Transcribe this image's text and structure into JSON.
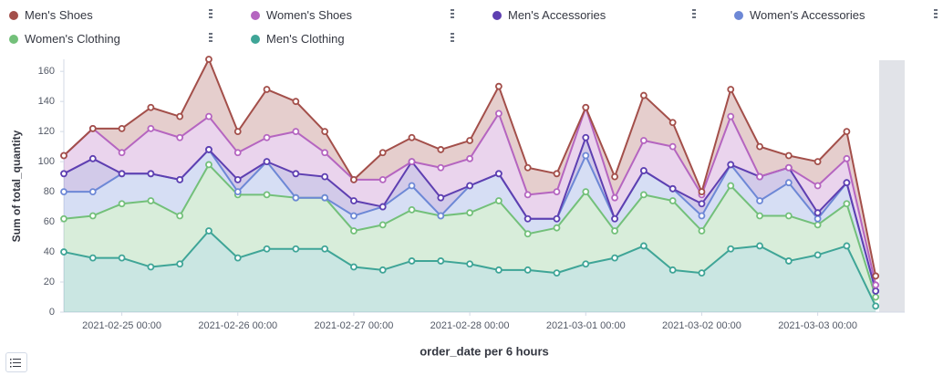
{
  "chart_data": {
    "type": "area",
    "stacked": true,
    "xlabel": "order_date per 6 hours",
    "ylabel": "Sum of total_quantity",
    "x": [
      "2021-02-24 12:00",
      "2021-02-24 18:00",
      "2021-02-25 00:00",
      "2021-02-25 06:00",
      "2021-02-25 12:00",
      "2021-02-25 18:00",
      "2021-02-26 00:00",
      "2021-02-26 06:00",
      "2021-02-26 12:00",
      "2021-02-26 18:00",
      "2021-02-27 00:00",
      "2021-02-27 06:00",
      "2021-02-27 12:00",
      "2021-02-27 18:00",
      "2021-02-28 00:00",
      "2021-02-28 06:00",
      "2021-02-28 12:00",
      "2021-02-28 18:00",
      "2021-03-01 00:00",
      "2021-03-01 06:00",
      "2021-03-01 12:00",
      "2021-03-01 18:00",
      "2021-03-02 00:00",
      "2021-03-02 06:00",
      "2021-03-02 12:00",
      "2021-03-02 18:00",
      "2021-03-03 00:00",
      "2021-03-03 06:00",
      "2021-03-03 12:00"
    ],
    "xlim": [
      "2021-02-24 12:00",
      "2021-03-03 18:00"
    ],
    "xticks": [
      "2021-02-25 00:00",
      "2021-02-26 00:00",
      "2021-02-27 00:00",
      "2021-02-28 00:00",
      "2021-03-01 00:00",
      "2021-03-02 00:00",
      "2021-03-03 00:00"
    ],
    "ylim": [
      0,
      168
    ],
    "yticks": [
      0,
      20,
      40,
      60,
      80,
      100,
      120,
      140,
      160
    ],
    "series": [
      {
        "name": "Men's Clothing",
        "color": "#3fa597",
        "values": [
          40,
          36,
          36,
          30,
          32,
          54,
          36,
          42,
          42,
          42,
          30,
          28,
          34,
          34,
          32,
          28,
          28,
          26,
          32,
          36,
          44,
          28,
          26,
          42,
          44,
          34,
          38,
          44,
          4
        ]
      },
      {
        "name": "Women's Clothing",
        "color": "#73c07a",
        "values": [
          22,
          28,
          36,
          44,
          32,
          44,
          42,
          36,
          34,
          34,
          24,
          30,
          34,
          30,
          34,
          46,
          24,
          30,
          48,
          18,
          34,
          46,
          28,
          42,
          20,
          30,
          20,
          28,
          6
        ]
      },
      {
        "name": "Women's Accessories",
        "color": "#6d88d6",
        "values": [
          18,
          16,
          20,
          18,
          24,
          10,
          2,
          22,
          0,
          0,
          10,
          12,
          16,
          0,
          18,
          18,
          10,
          6,
          24,
          8,
          16,
          8,
          10,
          14,
          10,
          22,
          4,
          14,
          4
        ]
      },
      {
        "name": "Men's Accessories",
        "color": "#5e3fb1",
        "values": [
          12,
          22,
          0,
          0,
          0,
          0,
          8,
          0,
          16,
          14,
          10,
          0,
          16,
          12,
          0,
          0,
          0,
          0,
          12,
          0,
          0,
          0,
          8,
          0,
          16,
          10,
          4,
          0,
          0
        ]
      },
      {
        "name": "Women's Shoes",
        "color": "#b565c0",
        "values": [
          12,
          20,
          14,
          30,
          28,
          22,
          18,
          16,
          28,
          16,
          14,
          18,
          0,
          20,
          18,
          40,
          16,
          18,
          20,
          14,
          20,
          28,
          6,
          32,
          0,
          0,
          18,
          16,
          4
        ]
      },
      {
        "name": "Men's Shoes",
        "color": "#a34f4a",
        "values": [
          0,
          0,
          16,
          14,
          14,
          38,
          14,
          32,
          20,
          14,
          0,
          18,
          16,
          12,
          12,
          18,
          18,
          12,
          0,
          14,
          30,
          16,
          2,
          18,
          20,
          8,
          16,
          18,
          6
        ]
      }
    ],
    "legend_order": [
      5,
      4,
      3,
      2,
      1,
      0
    ]
  }
}
